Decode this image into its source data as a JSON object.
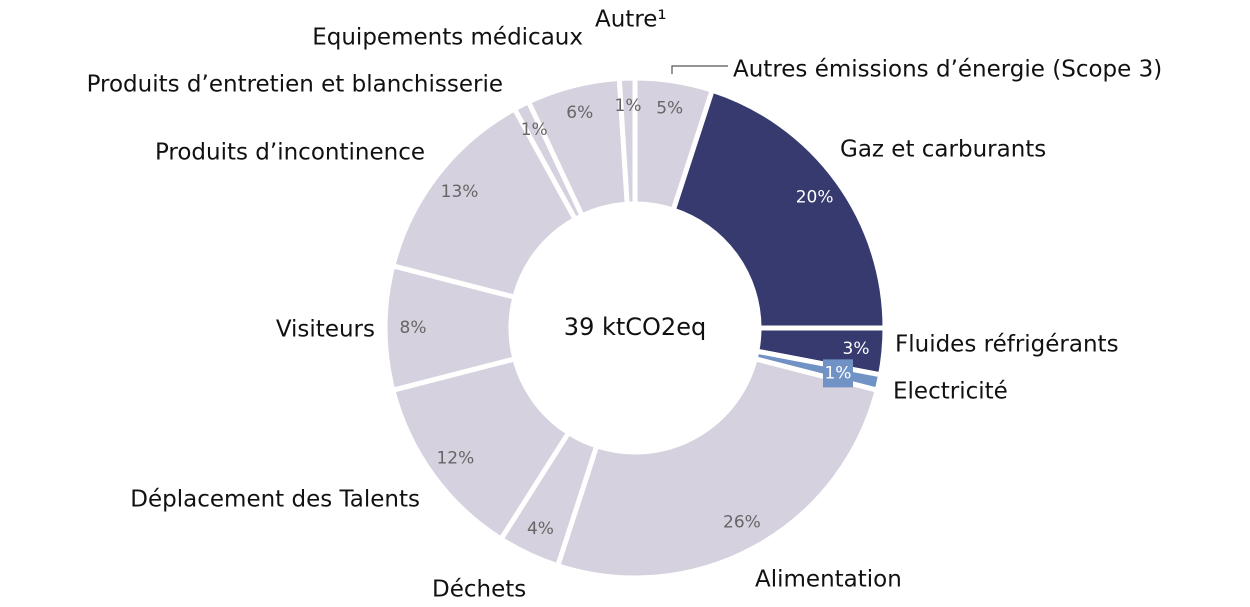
{
  "chart_data": {
    "type": "donut",
    "center_label": "39 ktCO2eq",
    "categories": [
      "Autres émissions d’énergie (Scope 3)",
      "Gaz et carburants",
      "Fluides réfrigérants",
      "Electricité",
      "Alimentation",
      "Déchets",
      "Déplacement des Talents",
      "Visiteurs",
      "Produits d’incontinence",
      "Produits d’entretien et blanchisserie",
      "Equipements médicaux",
      "Autre¹"
    ],
    "values": [
      5,
      20,
      3,
      1,
      26,
      4,
      12,
      8,
      13,
      1,
      6,
      1
    ],
    "value_labels": [
      "5%",
      "20%",
      "3%",
      "1%",
      "26%",
      "4%",
      "12%",
      "8%",
      "13%",
      "1%",
      "6%",
      "1%"
    ],
    "colors": [
      "#d6d1de",
      "#363a6e",
      "#363a6e",
      "#7092c4",
      "#d6d1de",
      "#d6d1de",
      "#d6d1de",
      "#d6d1de",
      "#d6d1de",
      "#d6d1de",
      "#d6d1de",
      "#d6d1de"
    ]
  }
}
